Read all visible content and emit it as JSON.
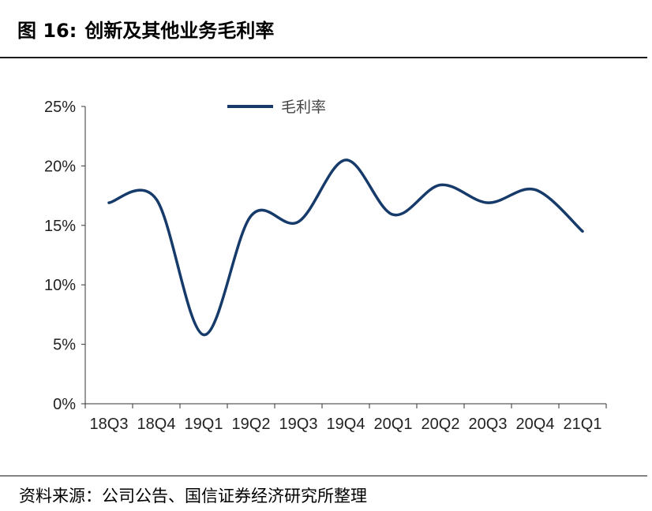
{
  "header": {
    "figure_label": "图 16:",
    "title": "创新及其他业务毛利率"
  },
  "source": "资料来源：公司公告、国信证券经济研究所整理",
  "chart_data": {
    "type": "line",
    "categories": [
      "18Q3",
      "18Q4",
      "19Q1",
      "19Q2",
      "19Q3",
      "19Q4",
      "20Q1",
      "20Q2",
      "20Q3",
      "20Q4",
      "21Q1"
    ],
    "series": [
      {
        "name": "毛利率",
        "color": "#163b6b",
        "values": [
          0.169,
          0.172,
          0.058,
          0.158,
          0.153,
          0.205,
          0.159,
          0.184,
          0.169,
          0.18,
          0.145
        ]
      }
    ],
    "ylim": [
      0,
      0.25
    ],
    "yticks": [
      "0%",
      "5%",
      "10%",
      "15%",
      "20%",
      "25%"
    ],
    "smooth": true,
    "grid": false,
    "legend_position": "top-center"
  }
}
